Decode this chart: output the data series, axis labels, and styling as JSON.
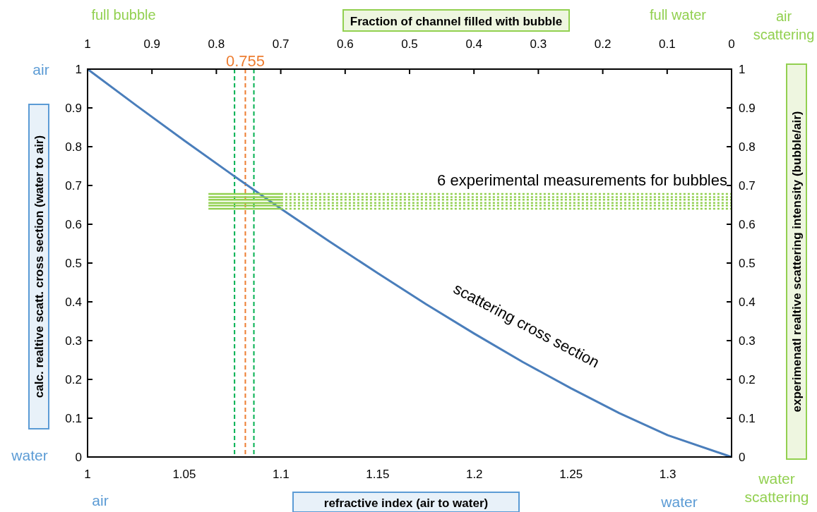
{
  "chart_data": {
    "type": "line",
    "xlabel": "refractive index (air to water)",
    "ylabel": "calc. realtive scatt. cross section (water to air)",
    "y2label": "experimenatl realtive scattering intensity (bubble/air)",
    "x2label": "Fraction of channel filled with bubble",
    "xlim": [
      1,
      1.333
    ],
    "xticks": [
      1,
      1.05,
      1.1,
      1.15,
      1.2,
      1.25,
      1.3
    ],
    "x2lim": [
      1,
      0
    ],
    "x2ticks": [
      1,
      0.9,
      0.8,
      0.7,
      0.6,
      0.5,
      0.4,
      0.3,
      0.2,
      0.1,
      0
    ],
    "ylim": [
      0,
      1
    ],
    "yticks": [
      0,
      0.1,
      0.2,
      0.3,
      0.4,
      0.5,
      0.6,
      0.7,
      0.8,
      0.9,
      1
    ],
    "y2lim": [
      0,
      1
    ],
    "y2ticks": [
      0,
      0.1,
      0.2,
      0.3,
      0.4,
      0.5,
      0.6,
      0.7,
      0.8,
      0.9,
      1
    ],
    "grid": false,
    "marker": "none",
    "series": [
      {
        "color": "#4a7ebb",
        "x": [
          1,
          1.025,
          1.05,
          1.075,
          1.1,
          1.125,
          1.15,
          1.175,
          1.2,
          1.225,
          1.25,
          1.275,
          1.3,
          1.333
        ],
        "values": [
          1,
          0.907,
          0.816,
          0.727,
          0.64,
          0.556,
          0.474,
          0.394,
          0.318,
          0.245,
          0.177,
          0.113,
          0.056,
          0
        ]
      },
      {
        "color": "#92d050",
        "x": [
          1.0625,
          1.1
        ],
        "values": [
          0.678,
          0.678
        ]
      },
      {
        "color": "#92d050",
        "x": [
          1.0625,
          1.1
        ],
        "values": [
          0.67,
          0.67
        ]
      },
      {
        "color": "#92d050",
        "x": [
          1.0625,
          1.1
        ],
        "values": [
          0.663,
          0.663
        ]
      },
      {
        "color": "#92d050",
        "x": [
          1.0625,
          1.1
        ],
        "values": [
          0.655,
          0.655
        ]
      },
      {
        "color": "#92d050",
        "x": [
          1.0625,
          1.1
        ],
        "values": [
          0.648,
          0.648
        ]
      },
      {
        "color": "#92d050",
        "x": [
          1.0625,
          1.1
        ],
        "values": [
          0.64,
          0.64
        ]
      },
      {
        "color": "#92d050",
        "line_style": "dotted",
        "x": [
          1.1,
          1.333
        ],
        "values": [
          0.678,
          0.678
        ]
      },
      {
        "color": "#92d050",
        "line_style": "dotted",
        "x": [
          1.1,
          1.333
        ],
        "values": [
          0.67,
          0.67
        ]
      },
      {
        "color": "#92d050",
        "line_style": "dotted",
        "x": [
          1.1,
          1.333
        ],
        "values": [
          0.663,
          0.663
        ]
      },
      {
        "color": "#92d050",
        "line_style": "dotted",
        "x": [
          1.1,
          1.333
        ],
        "values": [
          0.655,
          0.655
        ]
      },
      {
        "color": "#92d050",
        "line_style": "dotted",
        "x": [
          1.1,
          1.333
        ],
        "values": [
          0.648,
          0.648
        ]
      },
      {
        "color": "#92d050",
        "line_style": "dotted",
        "x": [
          1.1,
          1.333
        ],
        "values": [
          0.64,
          0.64
        ]
      }
    ],
    "ref_lines": [
      {
        "axis": "x",
        "value": 1.076,
        "color": "#00b050",
        "line_style": "dashed"
      },
      {
        "axis": "x2",
        "value": 0.755,
        "label": "0.755",
        "color": "#ed7d31",
        "line_style": "dashed"
      },
      {
        "axis": "x",
        "value": 1.086,
        "color": "#00b050",
        "line_style": "dashed"
      }
    ],
    "annotations": [
      "6 experimental measurements for bubbles",
      "scattering cross section",
      "air",
      "water",
      "air",
      "water",
      "full bubble",
      "full water",
      "air scattering",
      "water scattering"
    ]
  }
}
